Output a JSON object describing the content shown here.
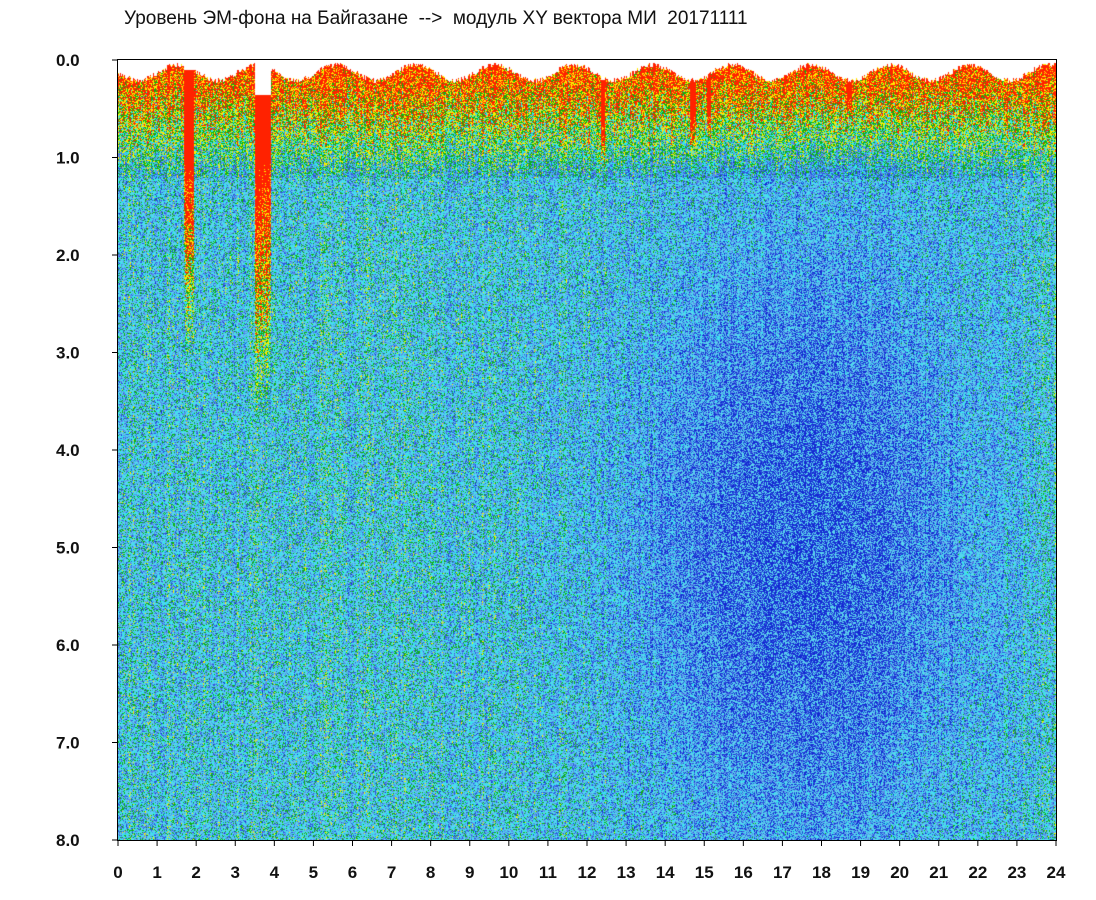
{
  "chart_data": {
    "type": "heatmap",
    "title": "Уровень ЭМ-фона на Байгазане  -->  модуль XY вектора МИ  20171111",
    "xlabel": "",
    "ylabel": "",
    "xlim": [
      0,
      24
    ],
    "ylim": [
      0,
      8
    ],
    "y_inverted": true,
    "grid": false,
    "x_ticks": [
      "0",
      "1",
      "2",
      "3",
      "4",
      "5",
      "6",
      "7",
      "8",
      "9",
      "10",
      "11",
      "12",
      "13",
      "14",
      "15",
      "16",
      "17",
      "18",
      "19",
      "20",
      "21",
      "22",
      "23",
      "24"
    ],
    "y_ticks": [
      "0.0",
      "1.0",
      "2.0",
      "3.0",
      "4.0",
      "5.0",
      "6.0",
      "7.0",
      "8.0"
    ],
    "colorscale": [
      "#ff2200",
      "#ffee00",
      "#10b010",
      "#33e6ee",
      "#5a8ee8",
      "#2e56de",
      "#1428d2"
    ],
    "colorscale_order": "high density to low density",
    "background_color": "#5ad4ee",
    "bright_vertical_bands": [
      {
        "x": 1.8,
        "width": 0.25,
        "top": 0.1,
        "depth": 3.0
      },
      {
        "x": 3.7,
        "width": 0.4,
        "top": 0.35,
        "depth": 3.6
      },
      {
        "x": 12.4,
        "width": 0.12,
        "top": 0.2,
        "depth": 1.3
      },
      {
        "x": 14.7,
        "width": 0.15,
        "top": 0.1,
        "depth": 1.0
      },
      {
        "x": 15.1,
        "width": 0.1,
        "top": 0.1,
        "depth": 0.8
      },
      {
        "x": 18.7,
        "width": 0.12,
        "top": 0.1,
        "depth": 0.6
      }
    ],
    "dark_region_center": {
      "x": 17.5,
      "y": 5.0
    }
  }
}
